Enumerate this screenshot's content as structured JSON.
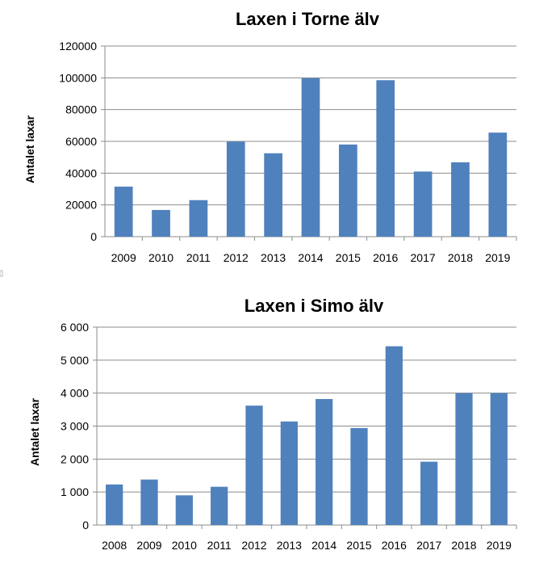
{
  "chart_data": [
    {
      "type": "bar",
      "title": "Laxen i Torne älv",
      "ylabel": "Antalet laxar",
      "xlabel": "",
      "categories": [
        "2009",
        "2010",
        "2011",
        "2012",
        "2013",
        "2014",
        "2015",
        "2016",
        "2017",
        "2018",
        "2019"
      ],
      "values": [
        31500,
        16800,
        23000,
        59800,
        52500,
        99800,
        58000,
        98500,
        41000,
        46800,
        65500
      ],
      "ylim": [
        0,
        120000
      ],
      "yticks": [
        0,
        20000,
        40000,
        60000,
        80000,
        100000,
        120000
      ],
      "ytick_labels": [
        "0",
        "20000",
        "40000",
        "60000",
        "80000",
        "100000",
        "120000"
      ],
      "grid": true,
      "color": "#4f81bd"
    },
    {
      "type": "bar",
      "title": "Laxen i Simo älv",
      "ylabel": "Antalet laxar",
      "xlabel": "",
      "categories": [
        "2008",
        "2009",
        "2010",
        "2011",
        "2012",
        "2013",
        "2014",
        "2015",
        "2016",
        "2017",
        "2018",
        "2019"
      ],
      "values": [
        1230,
        1380,
        900,
        1160,
        3620,
        3140,
        3820,
        2940,
        5420,
        1920,
        4000,
        4000
      ],
      "ylim": [
        0,
        6000
      ],
      "yticks": [
        0,
        1000,
        2000,
        3000,
        4000,
        5000,
        6000
      ],
      "ytick_labels": [
        "0",
        "1 000",
        "2 000",
        "3 000",
        "4 000",
        "5 000",
        "6 000"
      ],
      "grid": true,
      "color": "#4f81bd"
    }
  ]
}
